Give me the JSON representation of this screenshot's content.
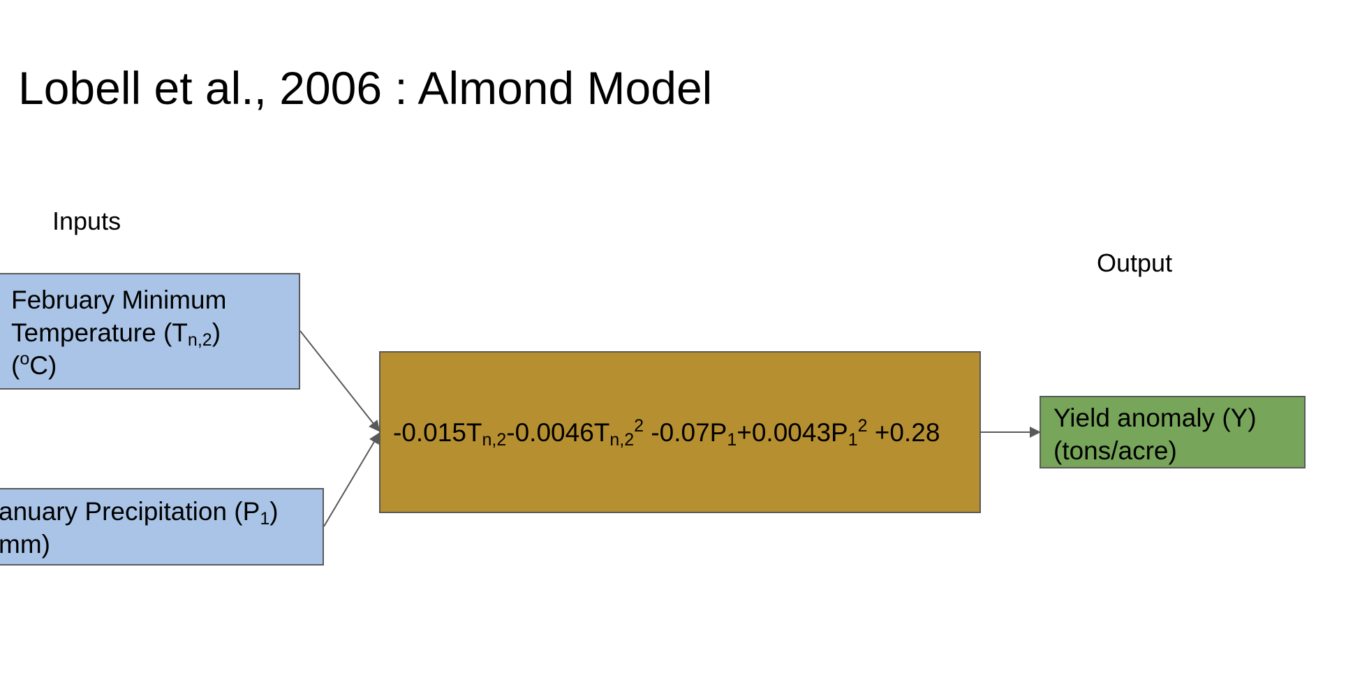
{
  "title": "Lobell et al., 2006 : Almond Model",
  "labels": {
    "inputs": "Inputs",
    "output": "Output"
  },
  "input_temperature": {
    "line1": "February Minimum",
    "line2_prefix": "Temperature (T",
    "line2_sub": "n,2",
    "line2_suffix": ")",
    "line3_prefix": "(",
    "line3_sup": "o",
    "line3_suffix": "C)"
  },
  "input_precipitation": {
    "line1_prefix": "anuary Precipitation (P",
    "line1_sub": "1",
    "line1_suffix": ")",
    "line2": "mm)"
  },
  "model_formula": {
    "t1_coef": "-0.015T",
    "t1_sub": "n,2",
    "t2_coef": "-0.0046T",
    "t2_sub": "n,2",
    "t2_sup": "2",
    "p1_coef": " -0.07P",
    "p1_sub": "1",
    "p2_coef": "+0.0043P",
    "p2_sub": "1",
    "p2_sup": "2",
    "constant": " +0.28"
  },
  "output_yield": {
    "line1": "Yield anomaly (Y)",
    "line2": "(tons/acre)"
  },
  "colors": {
    "input_fill": "#a9c4e6",
    "model_fill": "#b68f30",
    "output_fill": "#77a55a",
    "border": "#595959",
    "arrow": "#595959"
  }
}
